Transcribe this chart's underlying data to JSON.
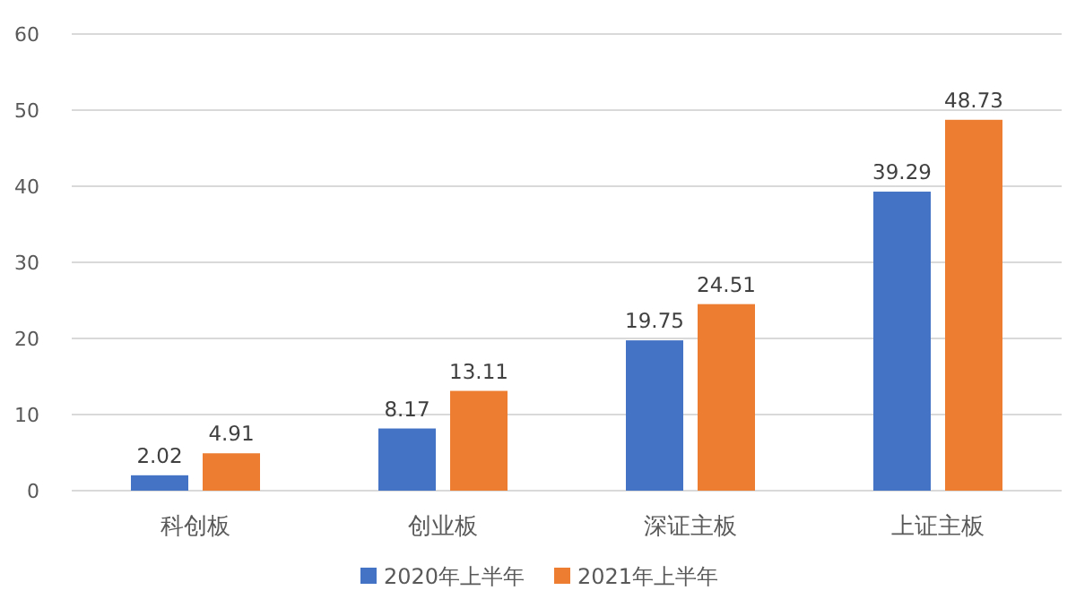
{
  "chart_data": {
    "type": "bar",
    "categories": [
      "科创板",
      "创业板",
      "深证主板",
      "上证主板"
    ],
    "series": [
      {
        "name": "2020年上半年",
        "color": "#4472c4",
        "values": [
          2.02,
          8.17,
          19.75,
          39.29
        ]
      },
      {
        "name": "2021年上半年",
        "color": "#ed7d31",
        "values": [
          4.91,
          13.11,
          24.51,
          48.73
        ]
      }
    ],
    "ylim": [
      0,
      60
    ],
    "yticks": [
      0,
      10,
      20,
      30,
      40,
      50,
      60
    ],
    "grid": "y",
    "legend": "bottom",
    "data_labels": true
  }
}
